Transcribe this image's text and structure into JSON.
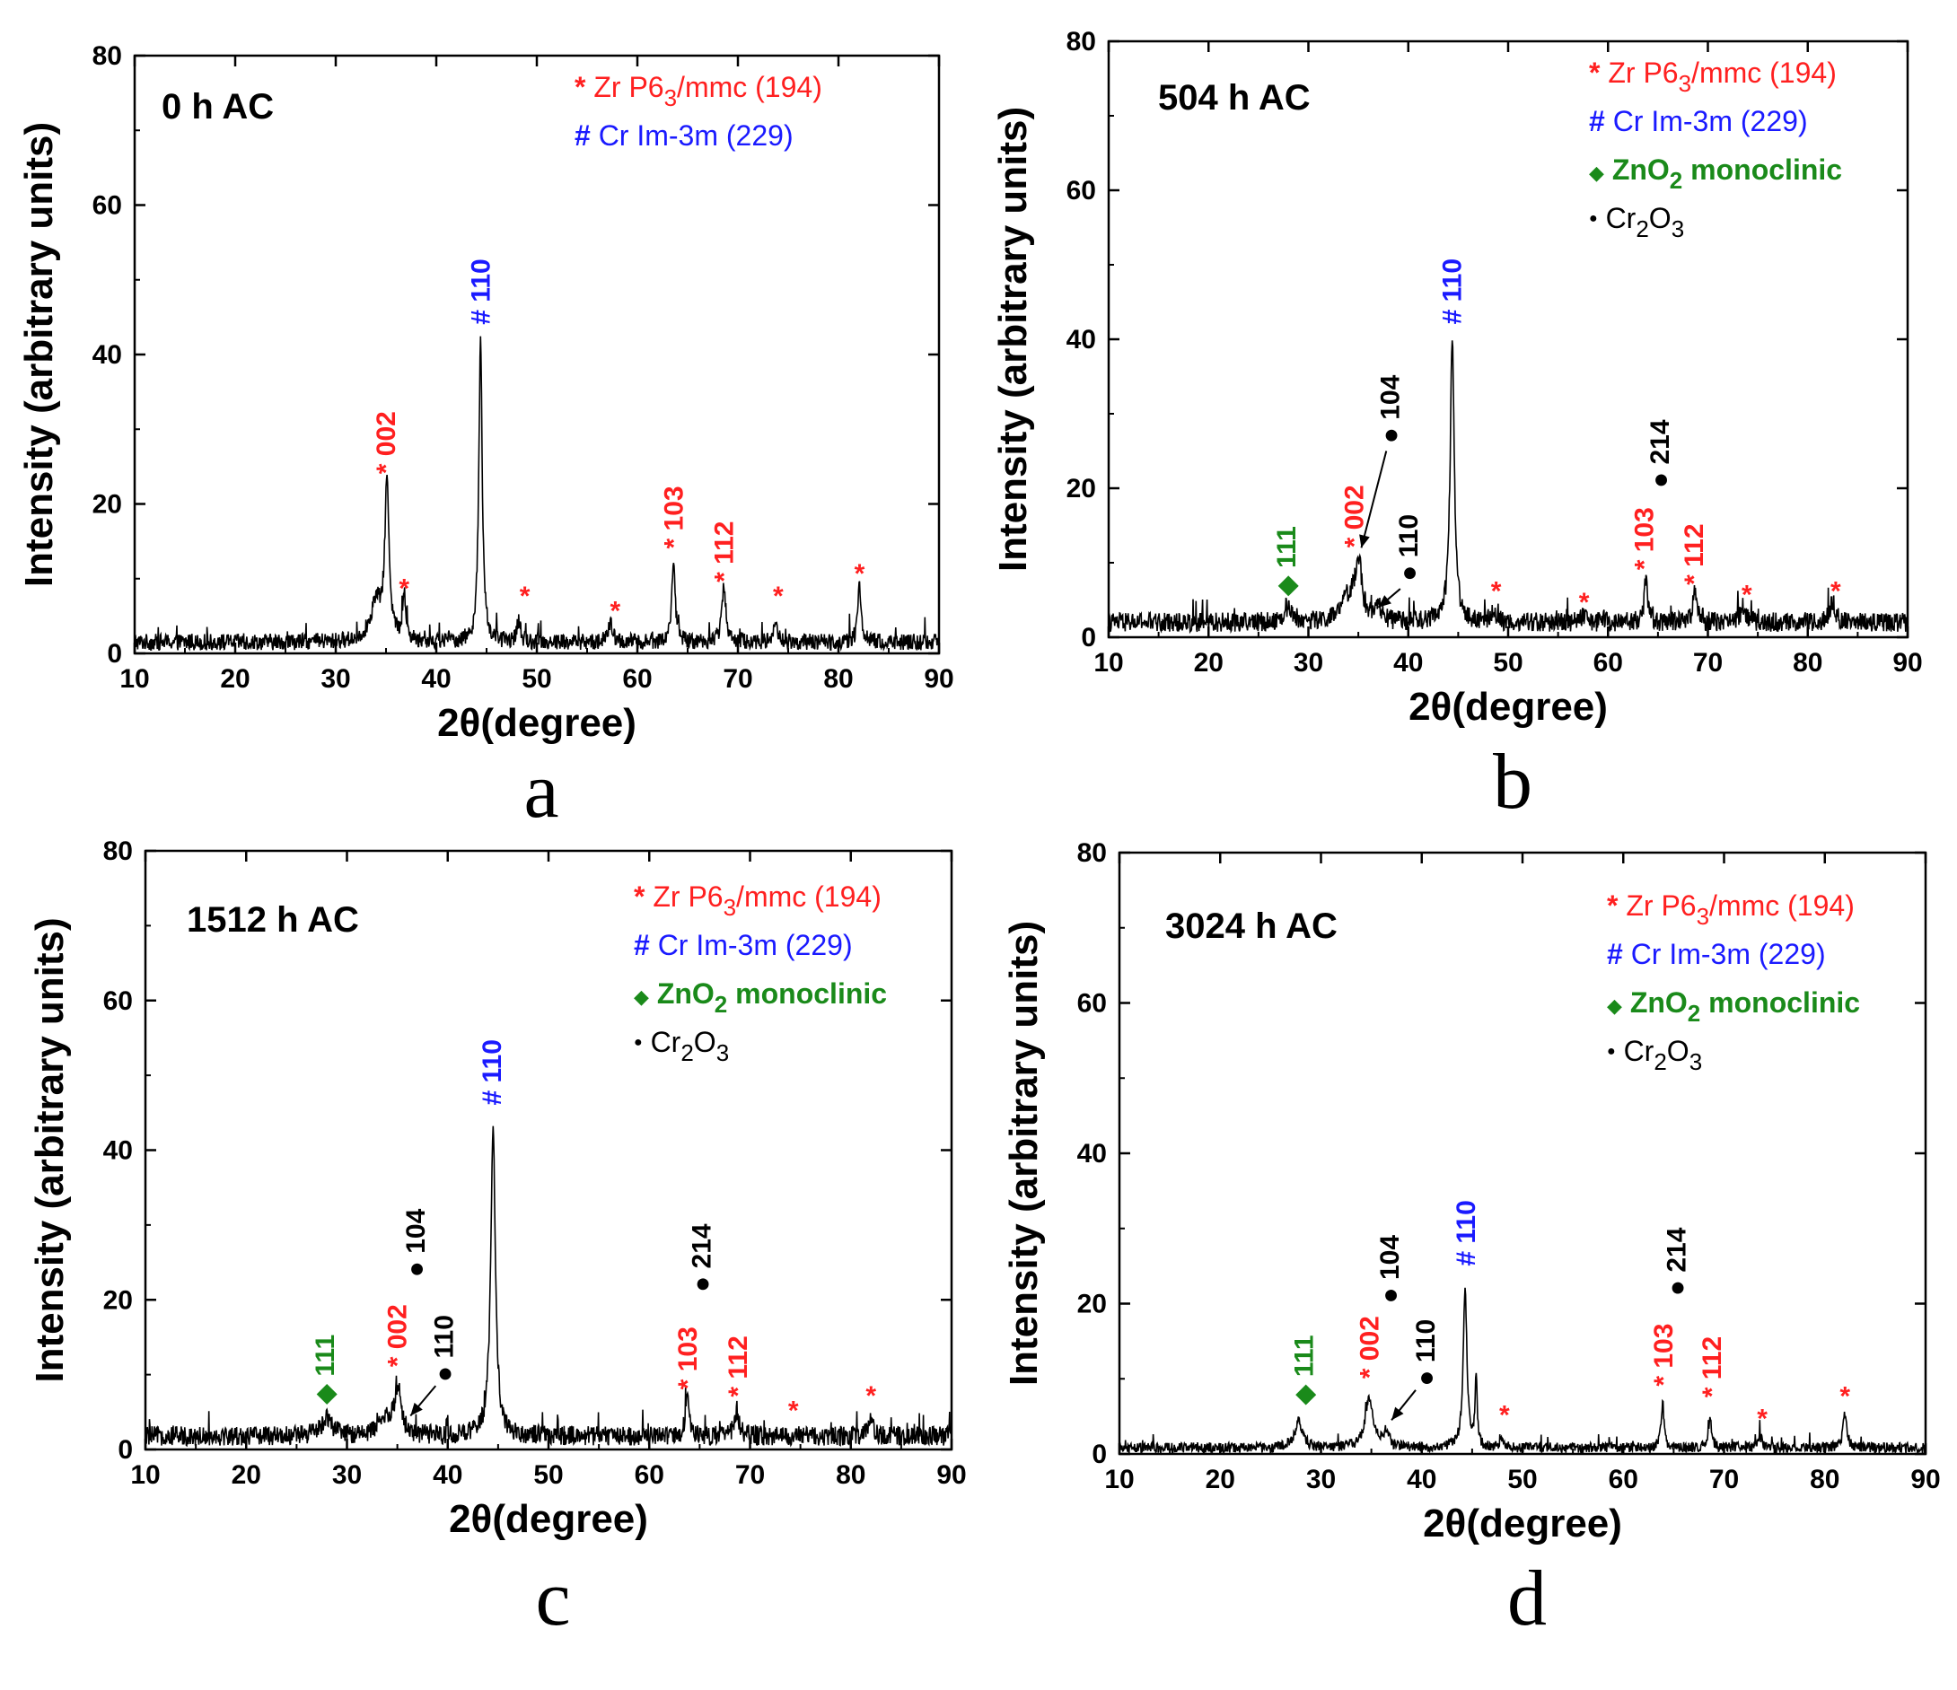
{
  "figure": {
    "panel_count": 4
  },
  "colors": {
    "zr": "#ff2020",
    "cr": "#1a1aff",
    "zno2": "#1a8a1a",
    "cr2o3": "#000000",
    "trace": "#000000"
  },
  "chart_data": [
    {
      "panel_letter": "a",
      "type": "line",
      "title": "0 h AC",
      "xlabel": "2θ(degree)",
      "ylabel": "Intensity (arbitrary units)",
      "xlim": [
        10,
        90
      ],
      "ylim": [
        0,
        80
      ],
      "xticks": [
        10,
        20,
        30,
        40,
        50,
        60,
        70,
        80,
        90
      ],
      "yticks": [
        0,
        20,
        40,
        60,
        80
      ],
      "baseline": 1.5,
      "noise": 1.1,
      "legend": [
        {
          "symbol": "*",
          "text": "Zr P6",
          "sub": "3",
          "tail": "/mmc (194)",
          "color": "zr",
          "bold": false
        },
        {
          "symbol": "#",
          "text": "Cr Im-3m (229)",
          "color": "cr",
          "bold": false
        }
      ],
      "peaks": [
        {
          "x": 35.1,
          "y": 21,
          "w": 0.5
        },
        {
          "x": 34.0,
          "y": 5,
          "w": 1.4
        },
        {
          "x": 36.8,
          "y": 6,
          "w": 0.4
        },
        {
          "x": 44.4,
          "y": 40.5,
          "w": 0.4
        },
        {
          "x": 48.2,
          "y": 3,
          "w": 0.4
        },
        {
          "x": 57.3,
          "y": 2.5,
          "w": 0.5
        },
        {
          "x": 63.6,
          "y": 11,
          "w": 0.4
        },
        {
          "x": 68.6,
          "y": 7.5,
          "w": 0.5
        },
        {
          "x": 73.7,
          "y": 2.5,
          "w": 0.5
        },
        {
          "x": 82.1,
          "y": 7.5,
          "w": 0.4
        }
      ],
      "annotations": [
        {
          "text": "* 002",
          "x": 35.0,
          "y": 24,
          "color": "zr",
          "rot": true
        },
        {
          "text": "*",
          "x": 36.8,
          "y": 7.5,
          "color": "zr"
        },
        {
          "text": "# 110",
          "x": 44.4,
          "y": 44,
          "color": "cr",
          "rot": true
        },
        {
          "text": "*",
          "x": 48.8,
          "y": 6.5,
          "color": "zr"
        },
        {
          "text": "*",
          "x": 57.8,
          "y": 4.5,
          "color": "zr"
        },
        {
          "text": "* 103",
          "x": 63.6,
          "y": 14,
          "color": "zr",
          "rot": true
        },
        {
          "text": "* 112",
          "x": 68.6,
          "y": 9.5,
          "color": "zr",
          "rot": true
        },
        {
          "text": "*",
          "x": 74.0,
          "y": 6.5,
          "color": "zr"
        },
        {
          "text": "*",
          "x": 82.1,
          "y": 9.5,
          "color": "zr"
        }
      ],
      "arrows": []
    },
    {
      "panel_letter": "b",
      "type": "line",
      "title": "504 h AC",
      "xlabel": "2θ(degree)",
      "ylabel": "Intensity (arbitrary units)",
      "xlim": [
        10,
        90
      ],
      "ylim": [
        0,
        80
      ],
      "xticks": [
        10,
        20,
        30,
        40,
        50,
        60,
        70,
        80,
        90
      ],
      "yticks": [
        0,
        20,
        40,
        60,
        80
      ],
      "baseline": 2.0,
      "noise": 1.3,
      "legend": [
        {
          "symbol": "*",
          "text": "Zr P6",
          "sub": "3",
          "tail": "/mmc (194)",
          "color": "zr",
          "bold": false
        },
        {
          "symbol": "#",
          "text": "Cr Im-3m (229)",
          "color": "cr",
          "bold": false
        },
        {
          "symbol": "◆",
          "text": "ZnO",
          "sub": "2",
          "tail": " monoclinic",
          "color": "zno2",
          "bold": true
        },
        {
          "symbol": "●",
          "text": "Cr",
          "sub": "2",
          "tail": "O",
          "sub2": "3",
          "color": "cr2o3",
          "bold": false
        }
      ],
      "peaks": [
        {
          "x": 28.0,
          "y": 2,
          "w": 1.0
        },
        {
          "x": 35.0,
          "y": 8,
          "w": 0.8
        },
        {
          "x": 34.0,
          "y": 3,
          "w": 1.6
        },
        {
          "x": 37.0,
          "y": 2,
          "w": 0.6
        },
        {
          "x": 44.4,
          "y": 38,
          "w": 0.5
        },
        {
          "x": 48.5,
          "y": 1.5,
          "w": 0.5
        },
        {
          "x": 57.5,
          "y": 1,
          "w": 0.5
        },
        {
          "x": 63.8,
          "y": 6,
          "w": 0.4
        },
        {
          "x": 68.7,
          "y": 4,
          "w": 0.5
        },
        {
          "x": 73.5,
          "y": 2,
          "w": 0.6
        },
        {
          "x": 82.5,
          "y": 3,
          "w": 0.6
        }
      ],
      "annotations": [
        {
          "text": "◆ 111",
          "x": 27.8,
          "y": 5.5,
          "color": "zno2",
          "rot": true
        },
        {
          "text": "* 002",
          "x": 34.6,
          "y": 12,
          "color": "zr",
          "rot": true
        },
        {
          "text": "● 104",
          "x": 38.2,
          "y": 26,
          "color": "cr2o3",
          "rot": true
        },
        {
          "text": "● 110",
          "x": 40.0,
          "y": 7.5,
          "color": "cr2o3",
          "rot": true
        },
        {
          "text": "# 110",
          "x": 44.4,
          "y": 42,
          "color": "cr",
          "rot": true
        },
        {
          "text": "*",
          "x": 48.8,
          "y": 5.0,
          "color": "zr"
        },
        {
          "text": "*",
          "x": 57.6,
          "y": 3.5,
          "color": "zr"
        },
        {
          "text": "● 214",
          "x": 65.2,
          "y": 20,
          "color": "cr2o3",
          "rot": true
        },
        {
          "text": "* 103",
          "x": 63.6,
          "y": 9,
          "color": "zr",
          "rot": true
        },
        {
          "text": "* 112",
          "x": 68.6,
          "y": 7,
          "color": "zr",
          "rot": true
        },
        {
          "text": "*",
          "x": 73.9,
          "y": 4.5,
          "color": "zr"
        },
        {
          "text": "*",
          "x": 82.8,
          "y": 5.0,
          "color": "zr"
        }
      ],
      "arrows": [
        {
          "from": [
            37.8,
            25
          ],
          "to": [
            35.3,
            12
          ]
        },
        {
          "from": [
            39.2,
            6.5
          ],
          "to": [
            37.0,
            4.0
          ]
        }
      ]
    },
    {
      "panel_letter": "c",
      "type": "line",
      "title": "1512 h AC",
      "xlabel": "2θ(degree)",
      "ylabel": "Intensity (arbitrary units)",
      "xlim": [
        10,
        90
      ],
      "ylim": [
        0,
        80
      ],
      "xticks": [
        10,
        20,
        30,
        40,
        50,
        60,
        70,
        80,
        90
      ],
      "yticks": [
        0,
        20,
        40,
        60,
        80
      ],
      "baseline": 1.8,
      "noise": 1.3,
      "legend": [
        {
          "symbol": "*",
          "text": "Zr P6",
          "sub": "3",
          "tail": "/mmc (194)",
          "color": "zr",
          "bold": false
        },
        {
          "symbol": "#",
          "text": "Cr Im-3m (229)",
          "color": "cr",
          "bold": false
        },
        {
          "symbol": "◆",
          "text": "ZnO",
          "sub": "2",
          "tail": " monoclinic",
          "color": "zno2",
          "bold": true
        },
        {
          "symbol": "●",
          "text": "Cr",
          "sub": "2",
          "tail": "O",
          "sub2": "3",
          "color": "cr2o3",
          "bold": false
        }
      ],
      "peaks": [
        {
          "x": 28.0,
          "y": 2.5,
          "w": 1.2
        },
        {
          "x": 35.1,
          "y": 6,
          "w": 0.7
        },
        {
          "x": 34.0,
          "y": 2.5,
          "w": 1.6
        },
        {
          "x": 44.5,
          "y": 42,
          "w": 0.55
        },
        {
          "x": 63.8,
          "y": 4.5,
          "w": 0.5
        },
        {
          "x": 68.7,
          "y": 3.5,
          "w": 0.5
        },
        {
          "x": 82.0,
          "y": 2.0,
          "w": 0.6
        }
      ],
      "annotations": [
        {
          "text": "◆ 111",
          "x": 27.8,
          "y": 6,
          "color": "zno2",
          "rot": true
        },
        {
          "text": "* 002",
          "x": 35.0,
          "y": 11,
          "color": "zr",
          "rot": true
        },
        {
          "text": "● 104",
          "x": 36.8,
          "y": 23,
          "color": "cr2o3",
          "rot": true
        },
        {
          "text": "● 110",
          "x": 39.6,
          "y": 9,
          "color": "cr2o3",
          "rot": true
        },
        {
          "text": "# 110",
          "x": 44.4,
          "y": 46,
          "color": "cr",
          "rot": true
        },
        {
          "text": "● 214",
          "x": 65.2,
          "y": 21,
          "color": "cr2o3",
          "rot": true
        },
        {
          "text": "* 103",
          "x": 63.8,
          "y": 8,
          "color": "zr",
          "rot": true
        },
        {
          "text": "* 112",
          "x": 68.8,
          "y": 7,
          "color": "zr",
          "rot": true
        },
        {
          "text": "*",
          "x": 74.3,
          "y": 4.0,
          "color": "zr"
        },
        {
          "text": "*",
          "x": 82.0,
          "y": 6.0,
          "color": "zr"
        }
      ],
      "arrows": [
        {
          "from": [
            38.8,
            8.5
          ],
          "to": [
            36.3,
            4.5
          ]
        }
      ]
    },
    {
      "panel_letter": "d",
      "type": "line",
      "title": "3024 h AC",
      "xlabel": "2θ(degree)",
      "ylabel": "Intensity (arbitrary units)",
      "xlim": [
        10,
        90
      ],
      "ylim": [
        0,
        80
      ],
      "xticks": [
        10,
        20,
        30,
        40,
        50,
        60,
        70,
        80,
        90
      ],
      "yticks": [
        0,
        20,
        40,
        60,
        80
      ],
      "baseline": 0.8,
      "noise": 0.7,
      "legend": [
        {
          "symbol": "*",
          "text": "Zr P6",
          "sub": "3",
          "tail": "/mmc (194)",
          "color": "zr",
          "bold": false
        },
        {
          "symbol": "#",
          "text": "Cr Im-3m (229)",
          "color": "cr",
          "bold": false
        },
        {
          "symbol": "◆",
          "text": "ZnO",
          "sub": "2",
          "tail": " monoclinic",
          "color": "zno2",
          "bold": true
        },
        {
          "symbol": "●",
          "text": "Cr",
          "sub": "2",
          "tail": "O",
          "sub2": "3",
          "color": "cr2o3",
          "bold": false
        }
      ],
      "peaks": [
        {
          "x": 27.8,
          "y": 3.5,
          "w": 0.9
        },
        {
          "x": 34.8,
          "y": 6.5,
          "w": 1.0
        },
        {
          "x": 36.5,
          "y": 2,
          "w": 0.6
        },
        {
          "x": 44.3,
          "y": 21,
          "w": 0.45
        },
        {
          "x": 45.4,
          "y": 9,
          "w": 0.25
        },
        {
          "x": 48.0,
          "y": 1.2,
          "w": 0.5
        },
        {
          "x": 63.9,
          "y": 6,
          "w": 0.35
        },
        {
          "x": 68.6,
          "y": 4,
          "w": 0.4
        },
        {
          "x": 73.6,
          "y": 1.5,
          "w": 0.4
        },
        {
          "x": 82.0,
          "y": 4.5,
          "w": 0.45
        }
      ],
      "annotations": [
        {
          "text": "◆ 111",
          "x": 28.3,
          "y": 6.5,
          "color": "zno2",
          "rot": true
        },
        {
          "text": "* 002",
          "x": 34.8,
          "y": 10,
          "color": "zr",
          "rot": true
        },
        {
          "text": "● 104",
          "x": 36.8,
          "y": 20,
          "color": "cr2o3",
          "rot": true
        },
        {
          "text": "● 110",
          "x": 40.4,
          "y": 9,
          "color": "cr2o3",
          "rot": true
        },
        {
          "text": "# 110",
          "x": 44.4,
          "y": 25,
          "color": "cr",
          "rot": true
        },
        {
          "text": "*",
          "x": 48.2,
          "y": 4.0,
          "color": "zr"
        },
        {
          "text": "● 214",
          "x": 65.3,
          "y": 21,
          "color": "cr2o3",
          "rot": true
        },
        {
          "text": "* 103",
          "x": 64.0,
          "y": 9,
          "color": "zr",
          "rot": true
        },
        {
          "text": "* 112",
          "x": 68.8,
          "y": 7.5,
          "color": "zr",
          "rot": true
        },
        {
          "text": "*",
          "x": 73.8,
          "y": 3.5,
          "color": "zr"
        },
        {
          "text": "*",
          "x": 82.0,
          "y": 6.5,
          "color": "zr"
        }
      ],
      "arrows": [
        {
          "from": [
            39.4,
            8.5
          ],
          "to": [
            37.0,
            4.5
          ]
        }
      ]
    }
  ]
}
